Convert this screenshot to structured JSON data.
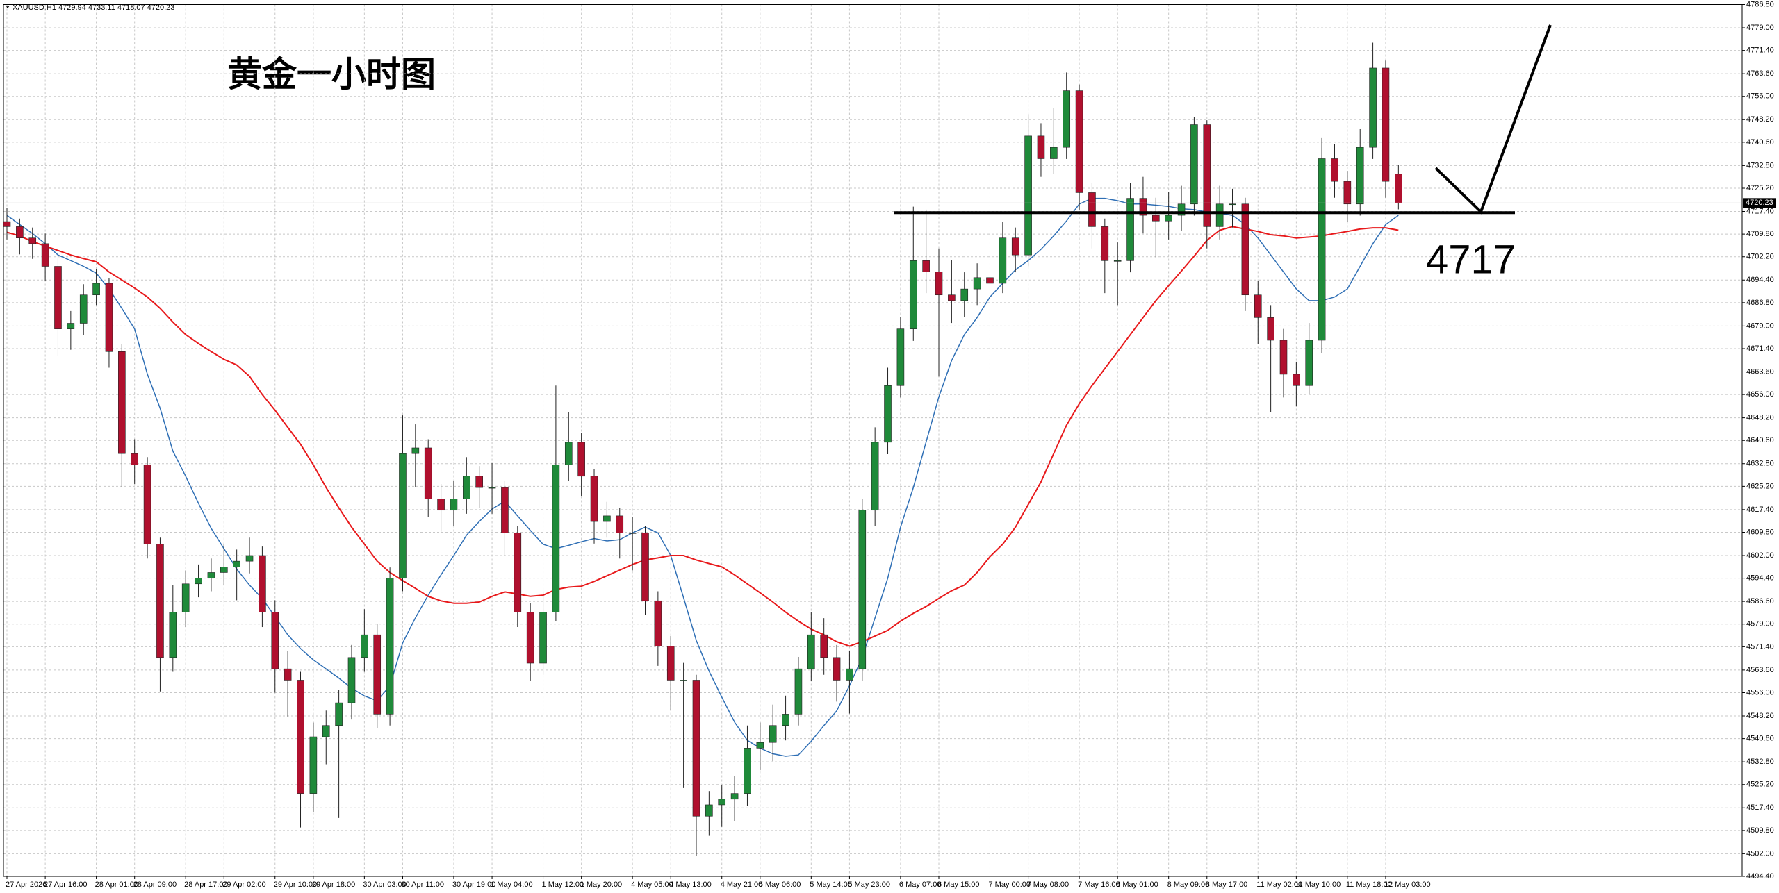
{
  "chart_data": {
    "type": "candlestick",
    "header": "XAUUSD,H1  4729.94 4733.11 4718.07 4720.23",
    "title": "黄金一小时图",
    "support_level": {
      "value": 4717,
      "label": "4717"
    },
    "price_marker": {
      "value": 4720.23,
      "label": "4720.23"
    },
    "up_color": "#1f8a3a",
    "down_color": "#b0102e",
    "grid": true,
    "ylim": [
      4494.4,
      4786.8
    ],
    "yticks": [
      {
        "value": 4494.4,
        "label": "4494.40"
      },
      {
        "value": 4502.0,
        "label": "4502.00"
      },
      {
        "value": 4509.8,
        "label": "4509.80"
      },
      {
        "value": 4517.4,
        "label": "4517.40"
      },
      {
        "value": 4525.2,
        "label": "4525.20"
      },
      {
        "value": 4532.8,
        "label": "4532.80"
      },
      {
        "value": 4540.6,
        "label": "4540.60"
      },
      {
        "value": 4548.2,
        "label": "4548.20"
      },
      {
        "value": 4556.0,
        "label": "4556.00"
      },
      {
        "value": 4563.6,
        "label": "4563.60"
      },
      {
        "value": 4571.4,
        "label": "4571.40"
      },
      {
        "value": 4579.0,
        "label": "4579.00"
      },
      {
        "value": 4586.6,
        "label": "4586.60"
      },
      {
        "value": 4594.4,
        "label": "4594.40"
      },
      {
        "value": 4602.0,
        "label": "4602.00"
      },
      {
        "value": 4609.8,
        "label": "4609.80"
      },
      {
        "value": 4617.4,
        "label": "4617.40"
      },
      {
        "value": 4625.2,
        "label": "4625.20"
      },
      {
        "value": 4632.8,
        "label": "4632.80"
      },
      {
        "value": 4640.6,
        "label": "4640.60"
      },
      {
        "value": 4648.2,
        "label": "4648.20"
      },
      {
        "value": 4656.0,
        "label": "4656.00"
      },
      {
        "value": 4663.6,
        "label": "4663.60"
      },
      {
        "value": 4671.4,
        "label": "4671.40"
      },
      {
        "value": 4679.0,
        "label": "4679.00"
      },
      {
        "value": 4686.8,
        "label": "4686.80"
      },
      {
        "value": 4694.4,
        "label": "4694.40"
      },
      {
        "value": 4702.2,
        "label": "4702.20"
      },
      {
        "value": 4709.8,
        "label": "4709.80"
      },
      {
        "value": 4717.4,
        "label": "4717.40"
      },
      {
        "value": 4725.2,
        "label": "4725.20"
      },
      {
        "value": 4732.8,
        "label": "4732.80"
      },
      {
        "value": 4740.6,
        "label": "4740.60"
      },
      {
        "value": 4748.2,
        "label": "4748.20"
      },
      {
        "value": 4756.0,
        "label": "4756.00"
      },
      {
        "value": 4763.6,
        "label": "4763.60"
      },
      {
        "value": 4771.4,
        "label": "4771.40"
      },
      {
        "value": 4779.0,
        "label": "4779.00"
      },
      {
        "value": 4786.8,
        "label": "4786.80"
      }
    ],
    "categories": [
      "27 Apr 2026",
      null,
      null,
      "27 Apr 16:00",
      null,
      null,
      null,
      "28 Apr 01:00",
      null,
      null,
      "28 Apr 09:00",
      null,
      null,
      null,
      "28 Apr 17:00",
      null,
      null,
      "29 Apr 02:00",
      null,
      null,
      null,
      "29 Apr 10:00",
      null,
      null,
      "29 Apr 18:00",
      null,
      null,
      null,
      "30 Apr 03:00",
      null,
      null,
      "30 Apr 11:00",
      null,
      null,
      null,
      "30 Apr 19:00",
      null,
      null,
      "1 May 04:00",
      null,
      null,
      null,
      "1 May 12:00",
      null,
      null,
      "1 May 20:00",
      null,
      null,
      null,
      "4 May 05:00",
      null,
      null,
      "4 May 13:00",
      null,
      null,
      null,
      "4 May 21:00",
      null,
      null,
      "5 May 06:00",
      null,
      null,
      null,
      "5 May 14:00",
      null,
      null,
      "5 May 23:00",
      null,
      null,
      null,
      "6 May 07:00",
      null,
      null,
      "6 May 15:00",
      null,
      null,
      null,
      "7 May 00:00",
      null,
      null,
      "7 May 08:00",
      null,
      null,
      null,
      "7 May 16:00",
      null,
      null,
      "8 May 01:00",
      null,
      null,
      null,
      "8 May 09:00",
      null,
      null,
      "8 May 17:00",
      null,
      null,
      null,
      "11 May 02:00",
      null,
      null,
      "11 May 10:00",
      null,
      null,
      null,
      "11 May 18:00",
      null,
      null,
      "12 May 03:00",
      null
    ],
    "open": [
      4714.0,
      4712.3,
      4708.5,
      4706.6,
      4699.0,
      4678.0,
      4679.9,
      4689.4,
      4693.3,
      4670.4,
      4636.2,
      4632.4,
      4605.8,
      4567.8,
      4583.0,
      4592.5,
      4594.4,
      4596.3,
      4598.2,
      4600.1,
      4602.0,
      4583.0,
      4564.0,
      4560.2,
      4522.2,
      4541.2,
      4545.0,
      4552.6,
      4567.8,
      4575.4,
      4548.8,
      4594.4,
      4636.2,
      4638.1,
      4621.0,
      4617.2,
      4621.0,
      4628.6,
      4624.8,
      4624.8,
      4609.6,
      4583.0,
      4565.9,
      4583.0,
      4632.4,
      4640.0,
      4628.6,
      4613.4,
      4615.3,
      4609.6,
      4609.6,
      4586.8,
      4571.6,
      4560.2,
      4560.2,
      4514.6,
      4518.4,
      4520.3,
      4522.2,
      4537.4,
      4539.3,
      4545.0,
      4548.8,
      4564.0,
      4575.4,
      4567.8,
      4560.2,
      4564.0,
      4617.2,
      4640.0,
      4659.0,
      4678.0,
      4700.9,
      4697.1,
      4689.4,
      4687.5,
      4691.4,
      4695.2,
      4693.3,
      4708.5,
      4702.8,
      4742.7,
      4735.1,
      4738.9,
      4757.9,
      4723.7,
      4712.3,
      4700.9,
      4700.9,
      4721.8,
      4716.1,
      4714.2,
      4716.1,
      4719.9,
      4746.5,
      4712.3,
      4719.9,
      4719.9,
      4689.4,
      4681.8,
      4674.2,
      4662.8,
      4659.0,
      4674.2,
      4735.1,
      4727.5,
      4719.9,
      4738.9,
      4765.5,
      4729.9
    ],
    "high": [
      4718.5,
      4715.0,
      4712.0,
      4710.0,
      4702.0,
      4684.0,
      4693.0,
      4698.0,
      4695.0,
      4673.0,
      4641.0,
      4635.0,
      4608.0,
      4592.0,
      4597.0,
      4599.0,
      4601.0,
      4606.0,
      4604.0,
      4608.0,
      4605.0,
      4587.0,
      4570.0,
      4563.0,
      4546.0,
      4550.0,
      4557.0,
      4572.0,
      4584.0,
      4579.0,
      4598.0,
      4649.0,
      4646.0,
      4641.0,
      4626.0,
      4627.0,
      4635.0,
      4632.0,
      4633.0,
      4627.0,
      4612.0,
      4586.0,
      4590.0,
      4659.0,
      4650.0,
      4643.0,
      4631.0,
      4620.0,
      4618.0,
      4615.0,
      4612.0,
      4590.0,
      4575.0,
      4566.0,
      4562.0,
      4523.0,
      4525.0,
      4528.0,
      4545.0,
      4546.0,
      4552.0,
      4555.0,
      4568.0,
      4583.0,
      4581.0,
      4572.0,
      4570.0,
      4621.0,
      4645.0,
      4665.0,
      4682.0,
      4719.0,
      4718.0,
      4705.0,
      4701.0,
      4697.0,
      4700.0,
      4704.0,
      4714.0,
      4712.0,
      4750.0,
      4747.0,
      4752.0,
      4764.0,
      4760.0,
      4727.0,
      4715.0,
      4707.0,
      4727.0,
      4729.0,
      4722.0,
      4724.0,
      4726.0,
      4749.0,
      4748.0,
      4726.0,
      4725.0,
      4722.0,
      4694.0,
      4686.0,
      4678.0,
      4667.0,
      4680.0,
      4742.0,
      4740.0,
      4731.0,
      4745.0,
      4774.0,
      4768.0,
      4733.1
    ],
    "low": [
      4708.0,
      4703.0,
      4701.5,
      4694.0,
      4669.0,
      4671.0,
      4676.0,
      4686.0,
      4665.0,
      4625.0,
      4626.0,
      4601.0,
      4556.4,
      4563.0,
      4578.0,
      4588.0,
      4590.0,
      4592.0,
      4587.0,
      4596.0,
      4578.0,
      4556.0,
      4548.0,
      4510.8,
      4516.0,
      4532.0,
      4514.0,
      4547.0,
      4563.0,
      4544.0,
      4545.0,
      4590.0,
      4625.0,
      4615.0,
      4610.0,
      4612.0,
      4616.0,
      4618.0,
      4616.0,
      4602.0,
      4578.0,
      4560.0,
      4562.0,
      4580.0,
      4627.0,
      4622.0,
      4606.0,
      4608.0,
      4601.0,
      4597.0,
      4582.0,
      4565.0,
      4550.0,
      4524.0,
      4501.2,
      4508.0,
      4511.0,
      4513.0,
      4518.0,
      4530.0,
      4533.0,
      4540.0,
      4545.0,
      4560.0,
      4562.0,
      4553.0,
      4549.0,
      4560.0,
      4612.0,
      4636.0,
      4655.0,
      4674.0,
      4690.0,
      4662.0,
      4680.0,
      4682.0,
      4686.0,
      4687.0,
      4690.0,
      4697.0,
      4699.0,
      4729.0,
      4730.0,
      4735.0,
      4718.0,
      4705.0,
      4690.0,
      4686.0,
      4697.0,
      4710.0,
      4702.0,
      4708.0,
      4711.0,
      4716.0,
      4705.0,
      4708.0,
      4712.0,
      4684.0,
      4673.0,
      4650.0,
      4655.0,
      4652.0,
      4656.0,
      4670.0,
      4722.0,
      4714.0,
      4716.0,
      4735.0,
      4722.0,
      4718.1
    ],
    "close": [
      4712.3,
      4708.5,
      4706.6,
      4699.0,
      4678.0,
      4679.9,
      4689.4,
      4693.3,
      4670.4,
      4636.2,
      4632.4,
      4605.8,
      4567.8,
      4583.0,
      4592.5,
      4594.4,
      4596.3,
      4598.2,
      4600.1,
      4602.0,
      4583.0,
      4564.0,
      4560.2,
      4522.2,
      4541.2,
      4545.0,
      4552.6,
      4567.8,
      4575.4,
      4548.8,
      4594.4,
      4636.2,
      4638.1,
      4621.0,
      4617.2,
      4621.0,
      4628.6,
      4624.8,
      4624.8,
      4609.6,
      4583.0,
      4565.9,
      4583.0,
      4632.4,
      4640.0,
      4628.6,
      4613.4,
      4615.3,
      4609.6,
      4609.6,
      4586.8,
      4571.6,
      4560.2,
      4560.2,
      4514.6,
      4518.4,
      4520.3,
      4522.2,
      4537.4,
      4539.3,
      4545.0,
      4548.8,
      4564.0,
      4575.4,
      4567.8,
      4560.2,
      4564.0,
      4617.2,
      4640.0,
      4659.0,
      4678.0,
      4700.9,
      4697.1,
      4689.4,
      4687.5,
      4691.4,
      4695.2,
      4693.3,
      4708.5,
      4702.8,
      4742.7,
      4735.1,
      4738.9,
      4757.9,
      4723.7,
      4712.3,
      4700.9,
      4700.9,
      4721.8,
      4716.1,
      4714.2,
      4716.1,
      4719.9,
      4746.5,
      4712.3,
      4719.9,
      4719.9,
      4689.4,
      4681.8,
      4674.2,
      4662.8,
      4659.0,
      4674.2,
      4735.1,
      4727.5,
      4719.9,
      4738.9,
      4765.5,
      4727.5,
      4720.2
    ],
    "moving_averages": [
      {
        "color": "#2f6fb5",
        "values": [
          4716.1,
          4713.0,
          4710.0,
          4706.6,
          4702.8,
          4700.9,
          4699.0,
          4696.7,
          4691.4,
          4684.9,
          4678.0,
          4662.8,
          4651.4,
          4637.0,
          4628.6,
          4619.5,
          4611.1,
          4604.3,
          4597.4,
          4592.1,
          4587.6,
          4581.5,
          4575.4,
          4570.8,
          4567.0,
          4564.0,
          4560.9,
          4557.5,
          4554.9,
          4553.3,
          4558.3,
          4572.7,
          4581.1,
          4588.7,
          4595.5,
          4602.0,
          4608.8,
          4613.4,
          4617.6,
          4620.2,
          4615.3,
          4610.4,
          4605.8,
          4604.3,
          4605.4,
          4606.6,
          4607.7,
          4606.9,
          4607.3,
          4609.6,
          4611.5,
          4609.6,
          4602.0,
          4587.9,
          4573.5,
          4563.2,
          4554.5,
          4546.1,
          4540.0,
          4537.4,
          4535.5,
          4534.7,
          4535.1,
          4539.7,
          4545.0,
          4549.9,
          4558.3,
          4567.8,
          4581.1,
          4594.4,
          4611.5,
          4624.8,
          4640.0,
          4655.2,
          4667.4,
          4676.1,
          4681.8,
          4688.7,
          4693.3,
          4697.8,
          4700.9,
          4704.7,
          4709.2,
          4714.2,
          4719.9,
          4721.8,
          4721.8,
          4721.0,
          4719.9,
          4719.9,
          4719.5,
          4719.1,
          4718.3,
          4718.0,
          4717.2,
          4716.8,
          4716.1,
          4713.0,
          4708.5,
          4702.8,
          4697.1,
          4691.4,
          4687.5,
          4687.5,
          4688.7,
          4691.4,
          4699.0,
          4706.6,
          4713.0,
          4716.1
        ]
      },
      {
        "color": "#e8191b",
        "values": [
          4710.4,
          4709.2,
          4707.3,
          4705.8,
          4704.3,
          4702.8,
          4701.6,
          4700.5,
          4697.1,
          4694.4,
          4691.7,
          4688.7,
          4684.9,
          4680.3,
          4676.1,
          4673.1,
          4670.4,
          4667.8,
          4665.9,
          4662.1,
          4656.0,
          4650.7,
          4645.0,
          4639.3,
          4632.4,
          4624.8,
          4618.0,
          4611.5,
          4605.8,
          4600.1,
          4596.3,
          4593.6,
          4591.0,
          4588.3,
          4586.8,
          4586.0,
          4586.0,
          4586.4,
          4588.3,
          4589.8,
          4589.1,
          4588.3,
          4588.7,
          4590.6,
          4591.4,
          4591.7,
          4593.3,
          4595.2,
          4597.1,
          4599.0,
          4600.5,
          4601.2,
          4602.0,
          4602.0,
          4600.5,
          4599.3,
          4598.2,
          4595.5,
          4592.5,
          4589.5,
          4586.4,
          4583.0,
          4580.0,
          4577.3,
          4575.4,
          4573.1,
          4571.6,
          4573.1,
          4575.0,
          4576.9,
          4580.0,
          4582.6,
          4584.9,
          4587.6,
          4590.2,
          4592.1,
          4596.3,
          4601.6,
          4605.8,
          4611.5,
          4619.1,
          4626.7,
          4636.2,
          4645.7,
          4652.9,
          4659.0,
          4664.7,
          4670.4,
          4676.1,
          4681.8,
          4687.5,
          4692.5,
          4697.4,
          4702.4,
          4707.7,
          4711.1,
          4712.3,
          4711.5,
          4710.7,
          4709.6,
          4709.2,
          4708.5,
          4708.8,
          4709.2,
          4710.0,
          4710.7,
          4711.5,
          4711.9,
          4711.9,
          4711.1
        ]
      }
    ]
  }
}
